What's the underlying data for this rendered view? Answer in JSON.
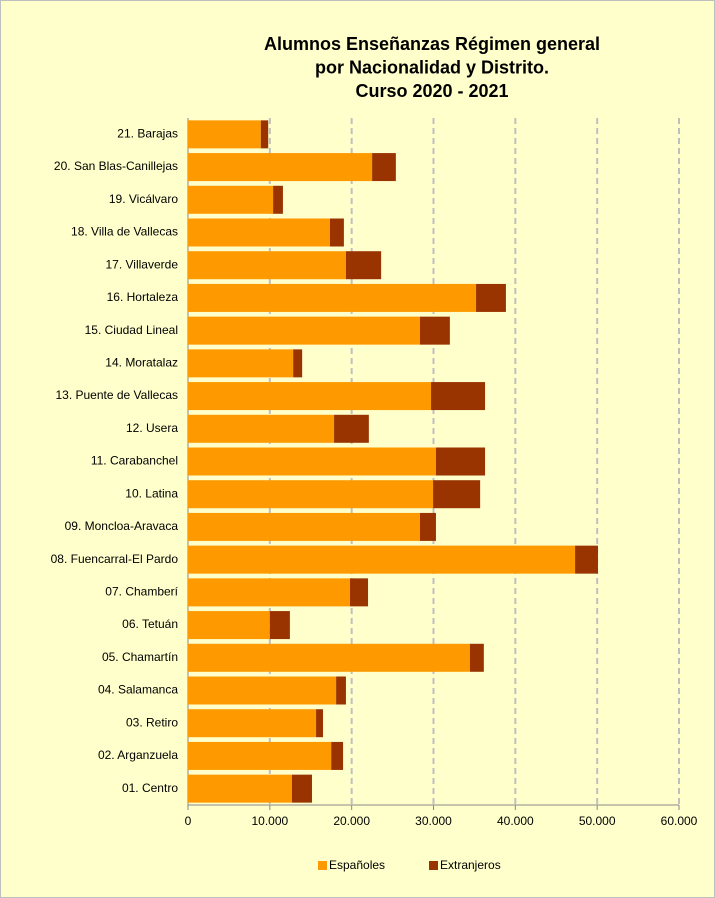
{
  "chart_data": {
    "type": "stacked-bar-horizontal",
    "title": [
      "Alumnos Enseñanzas Régimen general",
      "por Nacionalidad y Distrito.",
      "Curso 2020 - 2021"
    ],
    "categories": [
      "01. Centro",
      "02. Arganzuela",
      "03. Retiro",
      "04. Salamanca",
      "05. Chamartín",
      "06. Tetuán",
      "07. Chamberí",
      "08. Fuencarral-El Pardo",
      "09. Moncloa-Aravaca",
      "10. Latina",
      "11. Carabanchel",
      "12. Usera",
      "13. Puente de Vallecas",
      "14. Moratalaz",
      "15. Ciudad Lineal",
      "16. Hortaleza",
      "17. Villaverde",
      "18. Villa de Vallecas",
      "19. Vicálvaro",
      "20. San Blas-Canillejas",
      "21. Barajas"
    ],
    "series": [
      {
        "name": "Españoles",
        "color": "#ff9900",
        "values": [
          12700,
          17500,
          15650,
          18100,
          34450,
          10000,
          19800,
          47300,
          28350,
          29950,
          30300,
          17850,
          29700,
          12850,
          28350,
          35200,
          19300,
          17350,
          10400,
          22500,
          8900
        ]
      },
      {
        "name": "Extranjeros",
        "color": "#993300",
        "values": [
          2450,
          1450,
          850,
          1200,
          1700,
          2450,
          2200,
          2800,
          1950,
          5750,
          6000,
          4250,
          6600,
          1100,
          3650,
          3650,
          4300,
          1700,
          1200,
          2900,
          900
        ]
      }
    ],
    "xlim": [
      0,
      60000
    ],
    "xticks": [
      0,
      {
        "value": 10000,
        "label": "10.000"
      },
      {
        "value": 20000,
        "label": "20.000"
      },
      {
        "value": 30000,
        "label": "30.000"
      },
      {
        "value": 40000,
        "label": "40.000"
      },
      {
        "value": 50000,
        "label": "50.000"
      },
      {
        "value": 60000,
        "label": "60.000"
      }
    ],
    "grid": true,
    "legend": "bottom",
    "background": "#ffffcc"
  }
}
